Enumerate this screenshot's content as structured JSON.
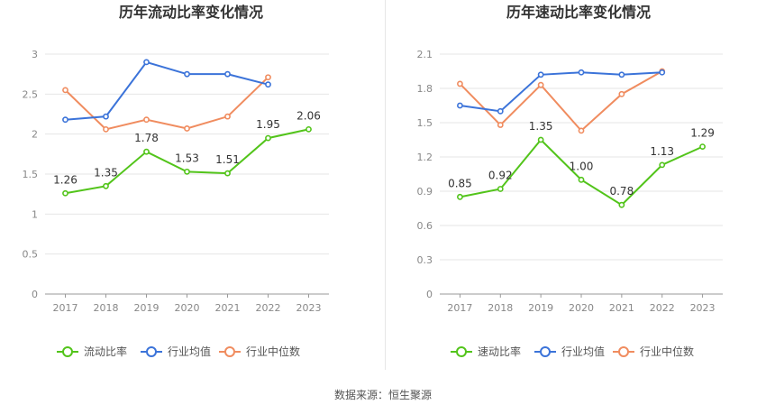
{
  "source_label": "数据来源：恒生聚源",
  "colors": {
    "main": "#52c41a",
    "avg": "#3b73d9",
    "median": "#f08c5f"
  },
  "chart_data": [
    {
      "type": "line",
      "title": "历年流动比率变化情况",
      "categories": [
        "2017",
        "2018",
        "2019",
        "2020",
        "2021",
        "2022",
        "2023"
      ],
      "ylim": [
        0,
        3
      ],
      "yticks": [
        "0",
        "0.5",
        "1",
        "1.5",
        "2",
        "2.5",
        "3"
      ],
      "grid": true,
      "legend_position": "bottom",
      "series": [
        {
          "name": "流动比率",
          "values": [
            1.26,
            1.35,
            1.78,
            1.53,
            1.51,
            1.95,
            2.06
          ],
          "labels": [
            "1.26",
            "1.35",
            "1.78",
            "1.53",
            "1.51",
            "1.95",
            "2.06"
          ]
        },
        {
          "name": "行业均值",
          "values": [
            2.18,
            2.22,
            2.9,
            2.75,
            2.75,
            2.62,
            null
          ]
        },
        {
          "name": "行业中位数",
          "values": [
            2.55,
            2.06,
            2.18,
            2.07,
            2.22,
            2.71,
            null
          ]
        }
      ]
    },
    {
      "type": "line",
      "title": "历年速动比率变化情况",
      "categories": [
        "2017",
        "2018",
        "2019",
        "2020",
        "2021",
        "2022",
        "2023"
      ],
      "ylim": [
        0,
        2.1
      ],
      "yticks": [
        "0",
        "0.3",
        "0.6",
        "0.9",
        "1.2",
        "1.5",
        "1.8",
        "2.1"
      ],
      "grid": true,
      "legend_position": "bottom",
      "series": [
        {
          "name": "速动比率",
          "values": [
            0.85,
            0.92,
            1.35,
            1.0,
            0.78,
            1.13,
            1.29
          ],
          "labels": [
            "0.85",
            "0.92",
            "1.35",
            "1.00",
            "0.78",
            "1.13",
            "1.29"
          ]
        },
        {
          "name": "行业均值",
          "values": [
            1.65,
            1.6,
            1.92,
            1.94,
            1.92,
            1.94,
            null
          ]
        },
        {
          "name": "行业中位数",
          "values": [
            1.84,
            1.48,
            1.83,
            1.43,
            1.75,
            1.95,
            null
          ]
        }
      ]
    }
  ]
}
